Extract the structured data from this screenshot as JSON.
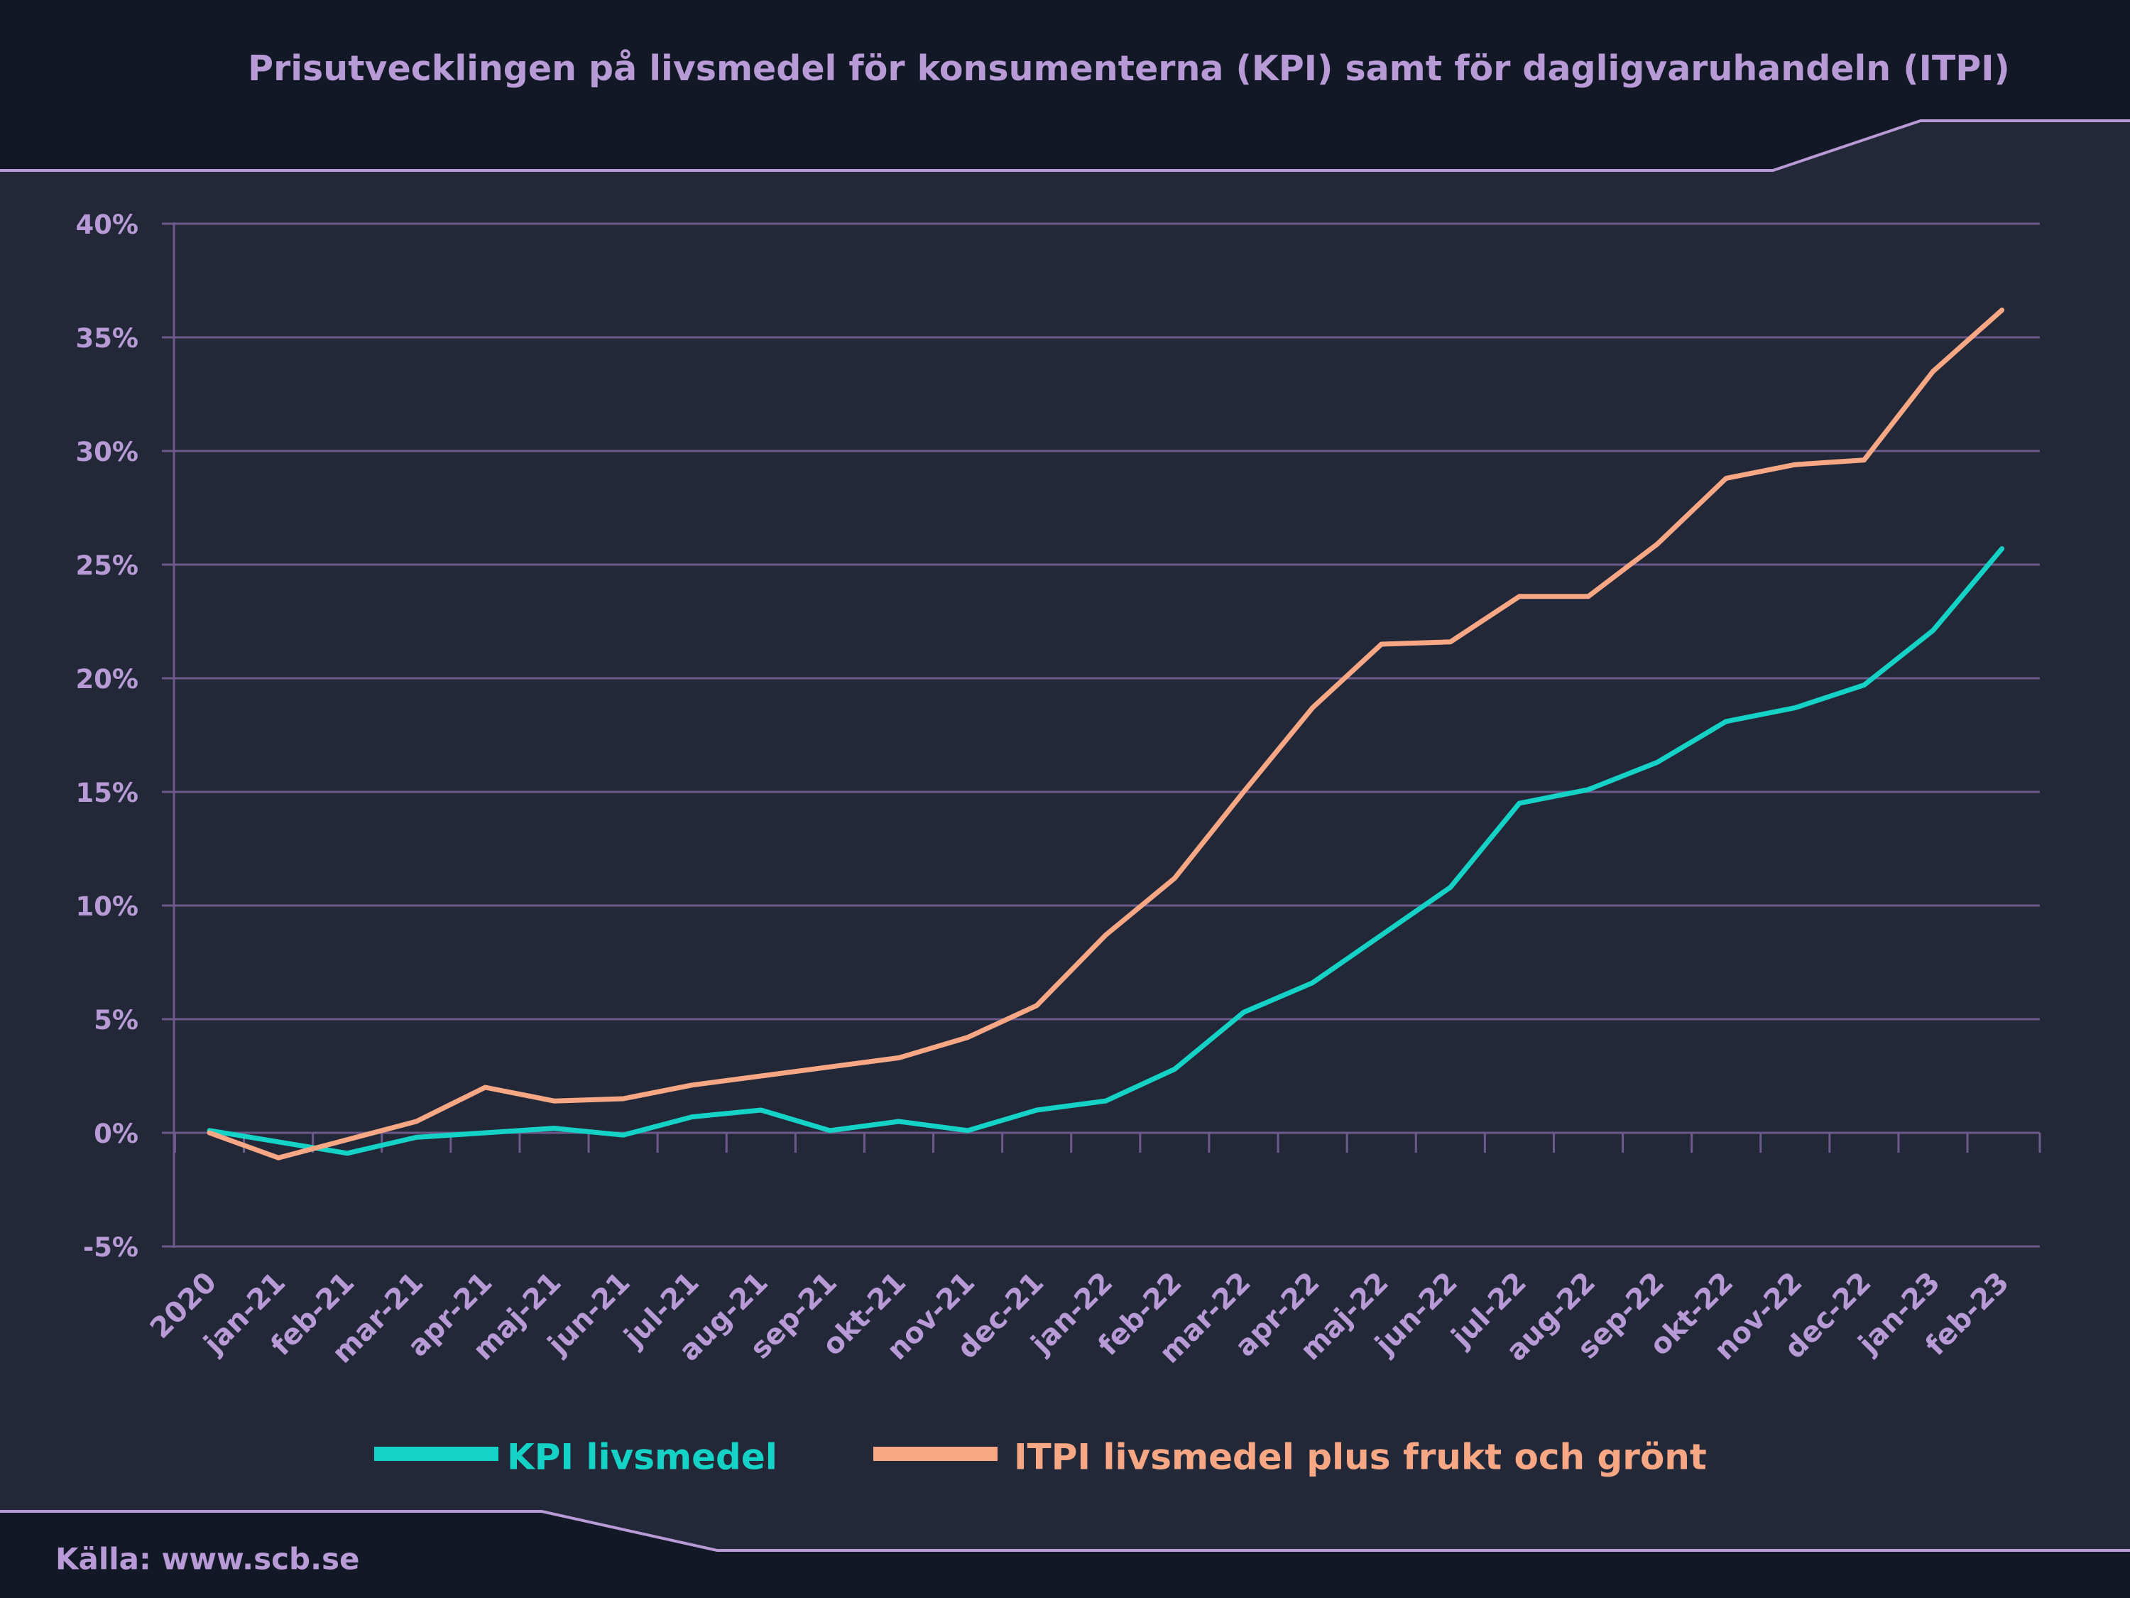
{
  "title": "Prisutvecklingen på livsmedel för konsumenterna (KPI) samt för dagligvaruhandeln (ITPI)",
  "source": "Källa: www.scb.se",
  "colors": {
    "background": "#222838",
    "header_band": "#121826",
    "accent": "#b79ad6",
    "grid": "#6d5a8c",
    "kpi": "#14d3c6",
    "itpi": "#f8a784"
  },
  "chart_data": {
    "type": "line",
    "title": "Prisutvecklingen på livsmedel för konsumenterna (KPI) samt för dagligvaruhandeln (ITPI)",
    "xlabel": "",
    "ylabel": "",
    "categories": [
      "2020",
      "jan-21",
      "feb-21",
      "mar-21",
      "apr-21",
      "maj-21",
      "jun-21",
      "jul-21",
      "aug-21",
      "sep-21",
      "okt-21",
      "nov-21",
      "dec-21",
      "jan-22",
      "feb-22",
      "mar-22",
      "apr-22",
      "maj-22",
      "jun-22",
      "jul-22",
      "aug-22",
      "sep-22",
      "okt-22",
      "nov-22",
      "dec-22",
      "jan-23",
      "feb-23"
    ],
    "ylim": [
      -5,
      40
    ],
    "yticks": [
      -5,
      0,
      5,
      10,
      15,
      20,
      25,
      30,
      35,
      40
    ],
    "ytick_labels": [
      "-5%",
      "0%",
      "5%",
      "10%",
      "15%",
      "20%",
      "25%",
      "30%",
      "35%",
      "40%"
    ],
    "grid": true,
    "legend_position": "bottom",
    "series": [
      {
        "name": "KPI livsmedel",
        "color": "#14d3c6",
        "values": [
          0.1,
          -0.4,
          -0.9,
          -0.2,
          0.0,
          0.2,
          -0.1,
          0.7,
          1.0,
          0.1,
          0.5,
          0.1,
          1.0,
          1.4,
          2.8,
          5.3,
          6.6,
          8.7,
          10.8,
          14.5,
          15.1,
          16.3,
          18.1,
          18.7,
          19.7,
          22.1,
          25.7
        ]
      },
      {
        "name": "ITPI livsmedel plus frukt och grönt",
        "color": "#f8a784",
        "values": [
          0.0,
          -1.1,
          -0.3,
          0.5,
          2.0,
          1.4,
          1.5,
          2.1,
          2.5,
          2.9,
          3.3,
          4.2,
          5.6,
          8.7,
          11.2,
          15.0,
          18.7,
          21.5,
          21.6,
          23.6,
          23.6,
          25.9,
          28.8,
          29.4,
          29.6,
          33.5,
          36.2
        ]
      }
    ]
  }
}
